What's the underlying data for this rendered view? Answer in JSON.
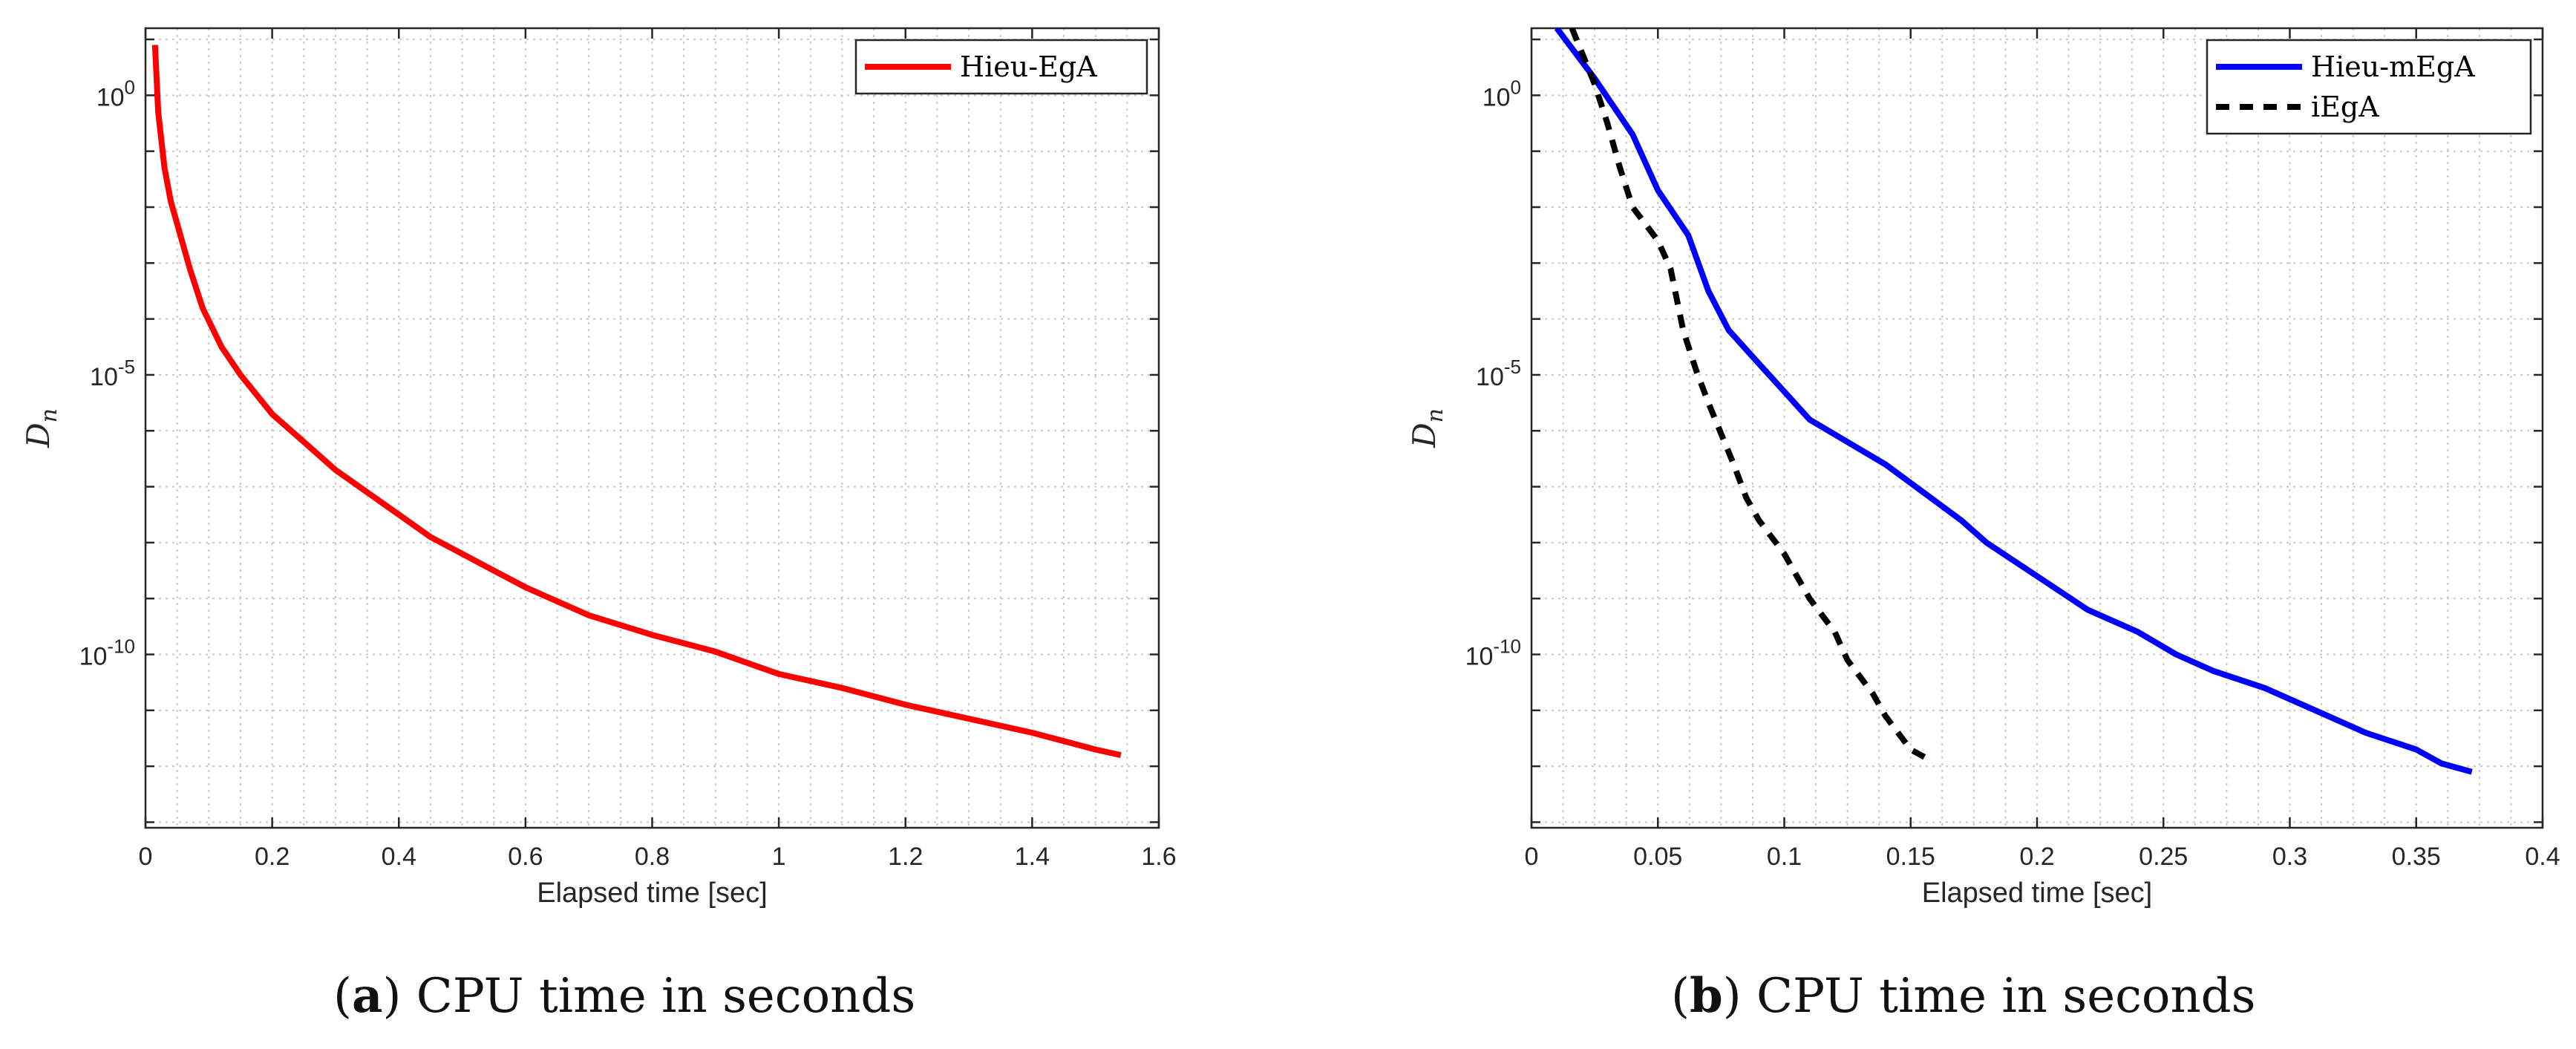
{
  "colors": {
    "hieu_ega": "#ff0000",
    "hieu_megA": "#0000ff",
    "iega": "#000000",
    "grid": "#c8c8c8",
    "axes": "#262626"
  },
  "captions": [
    {
      "letter": "a",
      "text": ") CPU time in seconds",
      "open": "("
    },
    {
      "letter": "b",
      "text": ") CPU time in seconds",
      "open": "("
    }
  ],
  "chart_data": [
    {
      "type": "line",
      "yscale": "log",
      "xlabel": "Elapsed time [sec]",
      "ylabel": "D",
      "ylabel_sub": "n",
      "xlim": [
        0,
        1.6
      ],
      "ylim_exp": [
        -13.1,
        1.2
      ],
      "grid": true,
      "legend": "top-right",
      "x_ticks": [
        0,
        0.2,
        0.4,
        0.6,
        0.8,
        1,
        1.2,
        1.4,
        1.6
      ],
      "x_tick_labels": [
        "0",
        "0.2",
        "0.4",
        "0.6",
        "0.8",
        "1",
        "1.2",
        "1.4",
        "1.6"
      ],
      "y_ticks": [
        {
          "base": "10",
          "exp": "0",
          "value": 0
        },
        {
          "base": "10",
          "exp": "-5",
          "value": -5
        },
        {
          "base": "10",
          "exp": "-10",
          "value": -10
        }
      ],
      "series": [
        {
          "name": "Hieu-EgA",
          "color_key": "hieu_ega",
          "dash": "",
          "x": [
            0.015,
            0.02,
            0.03,
            0.04,
            0.05,
            0.07,
            0.09,
            0.12,
            0.15,
            0.2,
            0.25,
            0.3,
            0.35,
            0.4,
            0.45,
            0.5,
            0.55,
            0.6,
            0.7,
            0.8,
            0.9,
            1.0,
            1.1,
            1.2,
            1.3,
            1.4,
            1.45,
            1.5,
            1.54
          ],
          "y_log": [
            0.9,
            -0.3,
            -1.3,
            -1.9,
            -2.3,
            -3.1,
            -3.8,
            -4.5,
            -5.0,
            -5.7,
            -6.2,
            -6.7,
            -7.1,
            -7.5,
            -7.9,
            -8.2,
            -8.5,
            -8.8,
            -9.3,
            -9.65,
            -9.95,
            -10.35,
            -10.6,
            -10.9,
            -11.15,
            -11.4,
            -11.55,
            -11.7,
            -11.8
          ]
        }
      ]
    },
    {
      "type": "line",
      "yscale": "log",
      "xlabel": "Elapsed time [sec]",
      "ylabel": "D",
      "ylabel_sub": "n",
      "xlim": [
        0,
        0.4
      ],
      "ylim_exp": [
        -13.1,
        1.2
      ],
      "grid": true,
      "legend": "top-right",
      "x_ticks": [
        0,
        0.05,
        0.1,
        0.15,
        0.2,
        0.25,
        0.3,
        0.35,
        0.4
      ],
      "x_tick_labels": [
        "0",
        "0.05",
        "0.1",
        "0.15",
        "0.2",
        "0.25",
        "0.3",
        "0.35",
        "0.4"
      ],
      "y_ticks": [
        {
          "base": "10",
          "exp": "0",
          "value": 0
        },
        {
          "base": "10",
          "exp": "-5",
          "value": -5
        },
        {
          "base": "10",
          "exp": "-10",
          "value": -10
        }
      ],
      "series": [
        {
          "name": "Hieu-mEgA",
          "color_key": "hieu_megA",
          "dash": "",
          "x": [
            0.01,
            0.025,
            0.04,
            0.05,
            0.062,
            0.07,
            0.078,
            0.09,
            0.1,
            0.11,
            0.125,
            0.14,
            0.155,
            0.17,
            0.18,
            0.2,
            0.22,
            0.24,
            0.255,
            0.27,
            0.29,
            0.31,
            0.33,
            0.35,
            0.36,
            0.372
          ],
          "y_log": [
            1.2,
            0.3,
            -0.7,
            -1.7,
            -2.5,
            -3.5,
            -4.2,
            -4.8,
            -5.3,
            -5.8,
            -6.2,
            -6.6,
            -7.1,
            -7.6,
            -8.0,
            -8.6,
            -9.2,
            -9.6,
            -10.0,
            -10.3,
            -10.6,
            -11.0,
            -11.4,
            -11.7,
            -11.95,
            -12.1
          ]
        },
        {
          "name": "iEgA",
          "color_key": "iega",
          "dash": "18,14",
          "x": [
            0.016,
            0.025,
            0.03,
            0.035,
            0.04,
            0.05,
            0.055,
            0.06,
            0.065,
            0.07,
            0.08,
            0.085,
            0.09,
            0.1,
            0.105,
            0.11,
            0.12,
            0.125,
            0.135,
            0.14,
            0.15,
            0.158
          ],
          "y_log": [
            1.2,
            0.2,
            -0.5,
            -1.3,
            -2.0,
            -2.6,
            -3.1,
            -4.2,
            -4.9,
            -5.5,
            -6.6,
            -7.2,
            -7.6,
            -8.2,
            -8.6,
            -9.0,
            -9.6,
            -10.1,
            -10.7,
            -11.1,
            -11.7,
            -11.9
          ]
        }
      ]
    }
  ]
}
